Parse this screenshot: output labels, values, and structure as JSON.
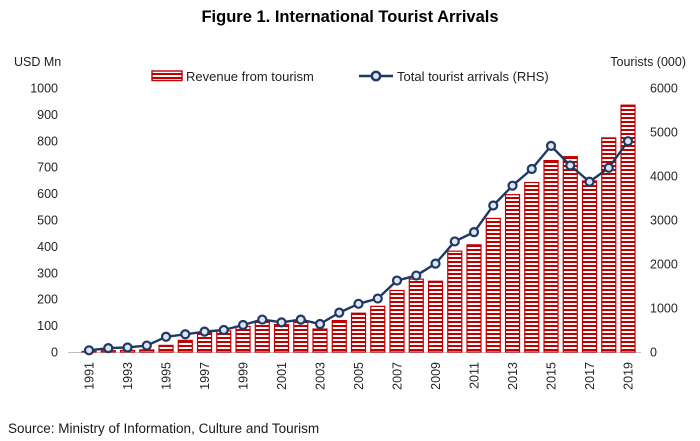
{
  "title": "Figure 1. International Tourist Arrivals",
  "source_note": "Source: Ministry of Information, Culture and Tourism",
  "colors": {
    "bar": "#C00000",
    "line": "#1F3864",
    "marker_fill": "#DCE6F2",
    "axis_line": "#BFBFBF",
    "text": "#262626"
  },
  "chart_data": {
    "type": "combo-bar-line",
    "title": "Figure 1. International Tourist Arrivals",
    "categories": [
      1991,
      1992,
      1993,
      1994,
      1995,
      1996,
      1997,
      1998,
      1999,
      2000,
      2001,
      2002,
      2003,
      2004,
      2005,
      2006,
      2007,
      2008,
      2009,
      2010,
      2011,
      2012,
      2013,
      2014,
      2015,
      2016,
      2017,
      2018,
      2019
    ],
    "series": [
      {
        "name": "Revenue from tourism",
        "type": "bar",
        "axis": "left",
        "color": "#C00000",
        "values": [
          2,
          5,
          6,
          8,
          25,
          44,
          73,
          80,
          97,
          114,
          104,
          113,
          87,
          119,
          147,
          173,
          233,
          276,
          268,
          382,
          406,
          506,
          596,
          642,
          725,
          740,
          648,
          811,
          935
        ]
      },
      {
        "name": "Total tourist arrivals (RHS)",
        "type": "line",
        "axis": "right",
        "color": "#1F3864",
        "values": [
          38,
          88,
          103,
          146,
          346,
          403,
          463,
          500,
          614,
          737,
          674,
          736,
          636,
          895,
          1095,
          1215,
          1624,
          1737,
          2008,
          2513,
          2724,
          3330,
          3780,
          4159,
          4684,
          4239,
          3869,
          4186,
          4791
        ]
      }
    ],
    "left_axis": {
      "label": "USD Mn",
      "min": 0,
      "max": 1000,
      "step": 100
    },
    "right_axis": {
      "label": "Tourists (000)",
      "min": 0,
      "max": 6000,
      "step": 1000
    },
    "x_tick_labels": [
      "1991",
      "1993",
      "1995",
      "1997",
      "1999",
      "2001",
      "2003",
      "2005",
      "2007",
      "2009",
      "2011",
      "2013",
      "2015",
      "2017",
      "2019"
    ],
    "grid": false,
    "legend_position": "top"
  }
}
